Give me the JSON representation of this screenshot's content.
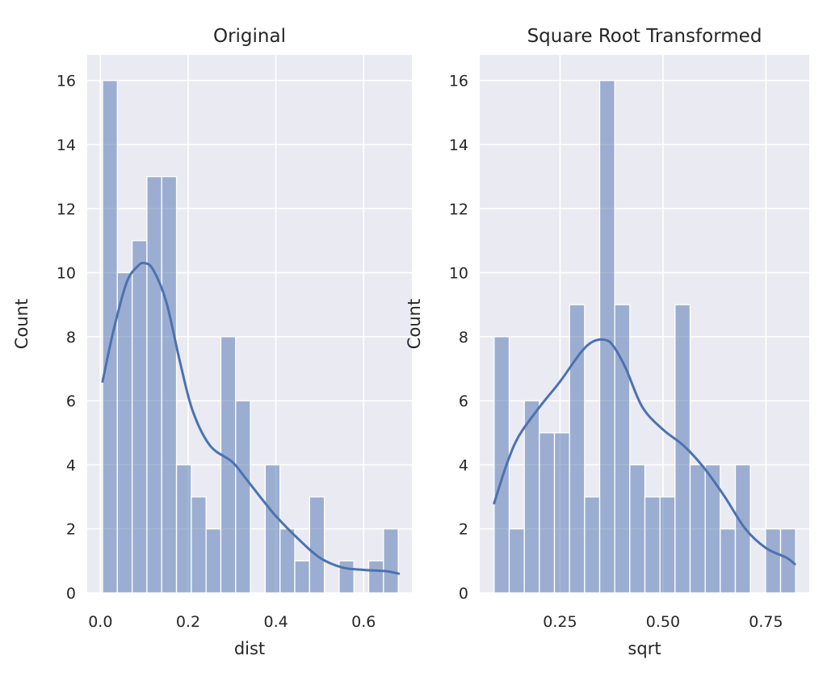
{
  "chart_data": [
    {
      "type": "bar",
      "subtype": "histogram-with-kde",
      "title": "Original",
      "xlabel": "dist",
      "ylabel": "Count",
      "xlim": [
        -0.03,
        0.71
      ],
      "ylim": [
        0,
        16.8
      ],
      "x_ticks": [
        0.0,
        0.2,
        0.4,
        0.6
      ],
      "x_tick_labels": [
        "0.0",
        "0.2",
        "0.4",
        "0.6"
      ],
      "y_ticks": [
        0,
        2,
        4,
        6,
        8,
        10,
        12,
        14,
        16
      ],
      "y_tick_labels": [
        "0",
        "2",
        "4",
        "6",
        "8",
        "10",
        "12",
        "14",
        "16"
      ],
      "grid": true,
      "bins": {
        "start": 0.005,
        "width": 0.0337,
        "counts": [
          16,
          10,
          11,
          13,
          13,
          4,
          3,
          2,
          8,
          6,
          0,
          4,
          2,
          1,
          3,
          0,
          1,
          0,
          1,
          2
        ]
      },
      "color": "#4c72b0",
      "kde": {
        "x": [
          0.005,
          0.03,
          0.06,
          0.085,
          0.1,
          0.12,
          0.15,
          0.18,
          0.21,
          0.25,
          0.3,
          0.33,
          0.37,
          0.4,
          0.45,
          0.5,
          0.55,
          0.6,
          0.65,
          0.68
        ],
        "y": [
          6.6,
          8.2,
          9.7,
          10.2,
          10.3,
          10.1,
          9.1,
          7.3,
          5.7,
          4.6,
          4.1,
          3.6,
          2.9,
          2.4,
          1.7,
          1.1,
          0.8,
          0.72,
          0.68,
          0.6
        ]
      }
    },
    {
      "type": "bar",
      "subtype": "histogram-with-kde",
      "title": "Square Root Transformed",
      "xlabel": "sqrt",
      "ylabel": "Count",
      "xlim": [
        0.055,
        0.855
      ],
      "ylim": [
        0,
        16.8
      ],
      "x_ticks": [
        0.25,
        0.5,
        0.75
      ],
      "x_tick_labels": [
        "0.25",
        "0.50",
        "0.75"
      ],
      "y_ticks": [
        0,
        2,
        4,
        6,
        8,
        10,
        12,
        14,
        16
      ],
      "y_tick_labels": [
        "0",
        "2",
        "4",
        "6",
        "8",
        "10",
        "12",
        "14",
        "16"
      ],
      "grid": true,
      "bins": {
        "start": 0.09,
        "width": 0.0366,
        "counts": [
          8,
          2,
          6,
          5,
          5,
          9,
          3,
          16,
          9,
          4,
          3,
          3,
          9,
          4,
          4,
          2,
          4,
          0,
          2,
          2
        ]
      },
      "color": "#4c72b0",
      "kde": {
        "x": [
          0.09,
          0.12,
          0.15,
          0.2,
          0.25,
          0.3,
          0.33,
          0.36,
          0.38,
          0.41,
          0.45,
          0.5,
          0.55,
          0.6,
          0.65,
          0.7,
          0.75,
          0.8,
          0.82
        ],
        "y": [
          2.8,
          4.0,
          4.9,
          5.8,
          6.6,
          7.5,
          7.85,
          7.9,
          7.7,
          7.0,
          5.8,
          5.1,
          4.6,
          3.9,
          3.0,
          2.0,
          1.4,
          1.1,
          0.9
        ]
      }
    }
  ]
}
